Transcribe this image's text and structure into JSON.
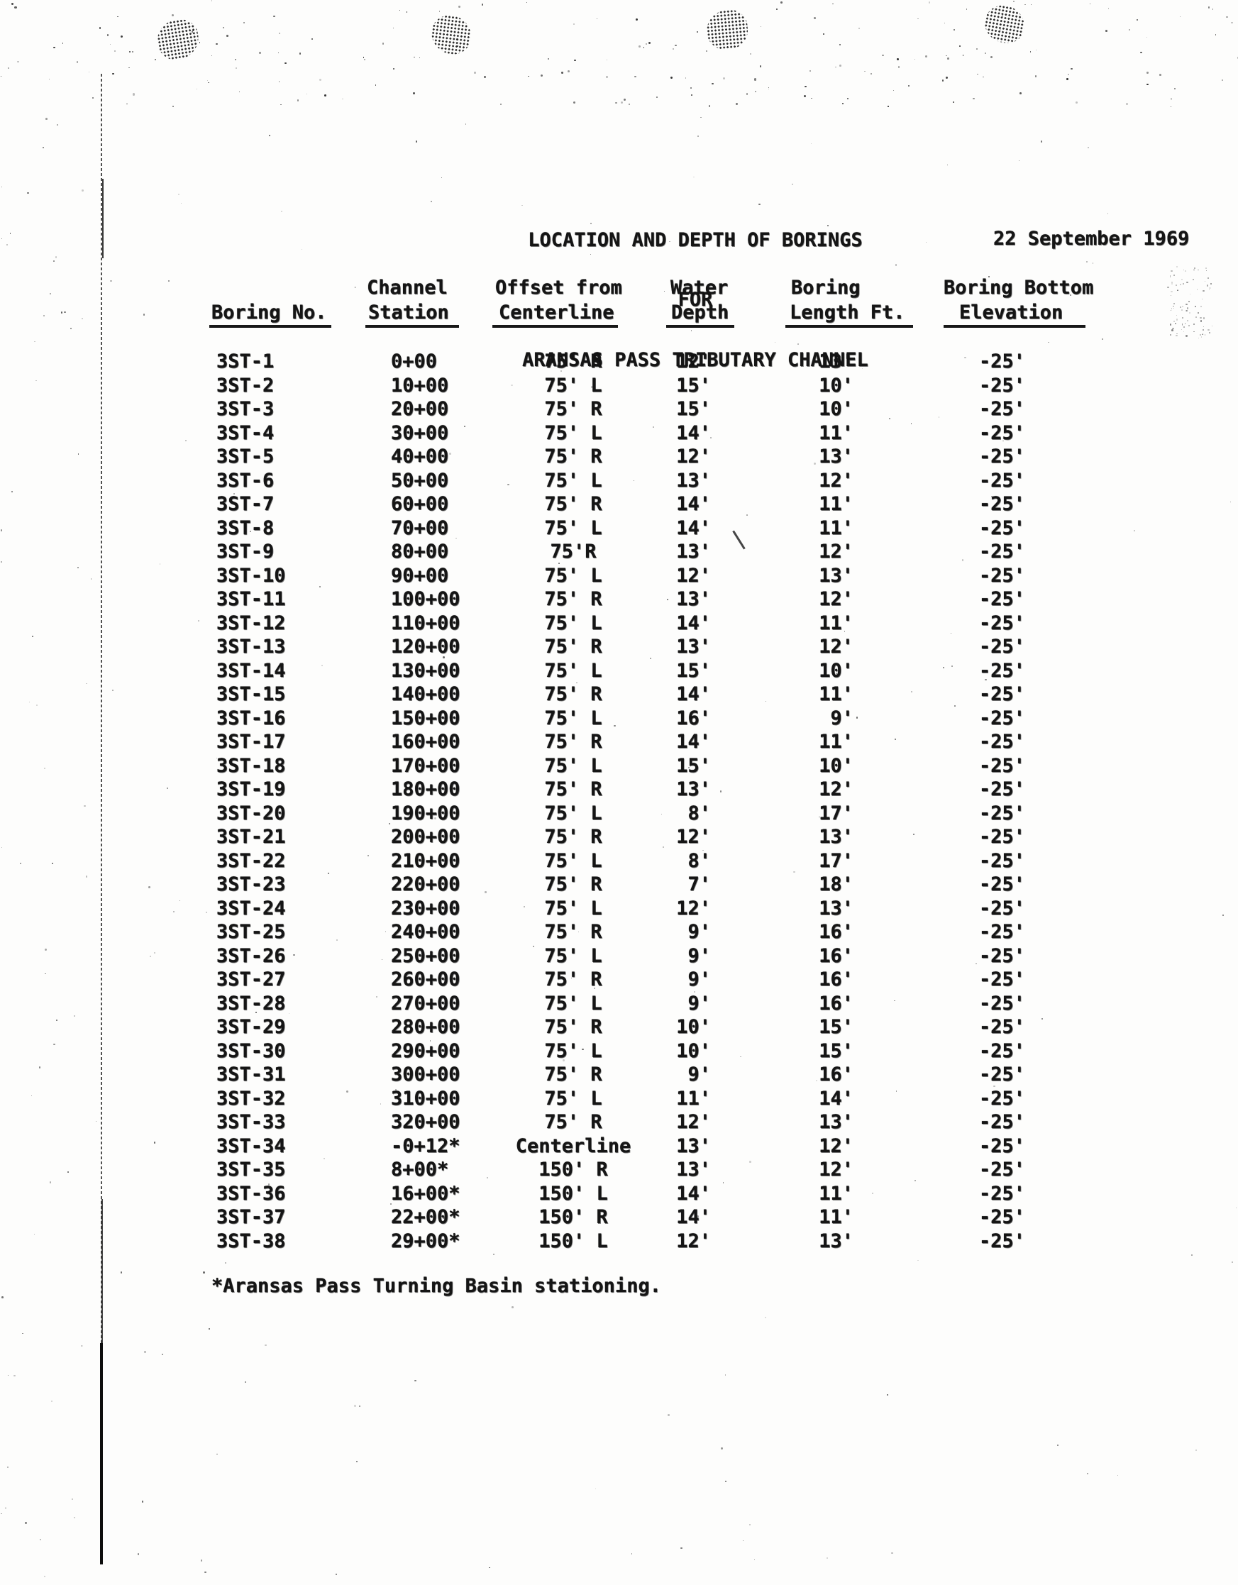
{
  "document": {
    "title_line1": "LOCATION AND DEPTH OF BORINGS",
    "title_line2": "FOR",
    "title_line3": "ARANSAS PASS TRIBUTARY CHANNEL",
    "date": "22 September 1969",
    "footnote": "*Aransas Pass Turning Basin stationing."
  },
  "table": {
    "column_headers": {
      "boring_no": {
        "line1": "",
        "line2": "Boring No."
      },
      "channel_station": {
        "line1": "Channel",
        "line2": "Station"
      },
      "offset_from_centerline": {
        "line1": "Offset from",
        "line2": "Centerline"
      },
      "water_depth": {
        "line1": "Water",
        "line2": "Depth"
      },
      "boring_length": {
        "line1": "Boring",
        "line2": "Length Ft."
      },
      "boring_bottom_elevation": {
        "line1": "Boring Bottom",
        "line2": "Elevation"
      }
    },
    "rows": [
      {
        "boring_no": "3ST-1",
        "station": "0+00",
        "offset": "75' R",
        "water_depth": "12'",
        "boring_length": "13'",
        "bottom_elevation": "-25'"
      },
      {
        "boring_no": "3ST-2",
        "station": "10+00",
        "offset": "75' L",
        "water_depth": "15'",
        "boring_length": "10'",
        "bottom_elevation": "-25'"
      },
      {
        "boring_no": "3ST-3",
        "station": "20+00",
        "offset": "75' R",
        "water_depth": "15'",
        "boring_length": "10'",
        "bottom_elevation": "-25'"
      },
      {
        "boring_no": "3ST-4",
        "station": "30+00",
        "offset": "75' L",
        "water_depth": "14'",
        "boring_length": "11'",
        "bottom_elevation": "-25'"
      },
      {
        "boring_no": "3ST-5",
        "station": "40+00",
        "offset": "75' R",
        "water_depth": "12'",
        "boring_length": "13'",
        "bottom_elevation": "-25'"
      },
      {
        "boring_no": "3ST-6",
        "station": "50+00",
        "offset": "75' L",
        "water_depth": "13'",
        "boring_length": "12'",
        "bottom_elevation": "-25'"
      },
      {
        "boring_no": "3ST-7",
        "station": "60+00",
        "offset": "75' R",
        "water_depth": "14'",
        "boring_length": "11'",
        "bottom_elevation": "-25'"
      },
      {
        "boring_no": "3ST-8",
        "station": "70+00",
        "offset": "75' L",
        "water_depth": "14'",
        "boring_length": "11'",
        "bottom_elevation": "-25'"
      },
      {
        "boring_no": "3ST-9",
        "station": "80+00",
        "offset": "75'R",
        "water_depth": "13'",
        "boring_length": "12'",
        "bottom_elevation": "-25'"
      },
      {
        "boring_no": "3ST-10",
        "station": "90+00",
        "offset": "75' L",
        "water_depth": "12'",
        "boring_length": "13'",
        "bottom_elevation": "-25'"
      },
      {
        "boring_no": "3ST-11",
        "station": "100+00",
        "offset": "75' R",
        "water_depth": "13'",
        "boring_length": "12'",
        "bottom_elevation": "-25'"
      },
      {
        "boring_no": "3ST-12",
        "station": "110+00",
        "offset": "75' L",
        "water_depth": "14'",
        "boring_length": "11'",
        "bottom_elevation": "-25'"
      },
      {
        "boring_no": "3ST-13",
        "station": "120+00",
        "offset": "75' R",
        "water_depth": "13'",
        "boring_length": "12'",
        "bottom_elevation": "-25'"
      },
      {
        "boring_no": "3ST-14",
        "station": "130+00",
        "offset": "75' L",
        "water_depth": "15'",
        "boring_length": "10'",
        "bottom_elevation": "-25'"
      },
      {
        "boring_no": "3ST-15",
        "station": "140+00",
        "offset": "75' R",
        "water_depth": "14'",
        "boring_length": "11'",
        "bottom_elevation": "-25'"
      },
      {
        "boring_no": "3ST-16",
        "station": "150+00",
        "offset": "75' L",
        "water_depth": "16'",
        "boring_length": "9'",
        "bottom_elevation": "-25'"
      },
      {
        "boring_no": "3ST-17",
        "station": "160+00",
        "offset": "75' R",
        "water_depth": "14'",
        "boring_length": "11'",
        "bottom_elevation": "-25'"
      },
      {
        "boring_no": "3ST-18",
        "station": "170+00",
        "offset": "75' L",
        "water_depth": "15'",
        "boring_length": "10'",
        "bottom_elevation": "-25'"
      },
      {
        "boring_no": "3ST-19",
        "station": "180+00",
        "offset": "75' R",
        "water_depth": "13'",
        "boring_length": "12'",
        "bottom_elevation": "-25'"
      },
      {
        "boring_no": "3ST-20",
        "station": "190+00",
        "offset": "75' L",
        "water_depth": "8'",
        "boring_length": "17'",
        "bottom_elevation": "-25'"
      },
      {
        "boring_no": "3ST-21",
        "station": "200+00",
        "offset": "75' R",
        "water_depth": "12'",
        "boring_length": "13'",
        "bottom_elevation": "-25'"
      },
      {
        "boring_no": "3ST-22",
        "station": "210+00",
        "offset": "75' L",
        "water_depth": "8'",
        "boring_length": "17'",
        "bottom_elevation": "-25'"
      },
      {
        "boring_no": "3ST-23",
        "station": "220+00",
        "offset": "75' R",
        "water_depth": "7'",
        "boring_length": "18'",
        "bottom_elevation": "-25'"
      },
      {
        "boring_no": "3ST-24",
        "station": "230+00",
        "offset": "75' L",
        "water_depth": "12'",
        "boring_length": "13'",
        "bottom_elevation": "-25'"
      },
      {
        "boring_no": "3ST-25",
        "station": "240+00",
        "offset": "75' R",
        "water_depth": "9'",
        "boring_length": "16'",
        "bottom_elevation": "-25'"
      },
      {
        "boring_no": "3ST-26",
        "station": "250+00",
        "offset": "75' L",
        "water_depth": "9'",
        "boring_length": "16'",
        "bottom_elevation": "-25'"
      },
      {
        "boring_no": "3ST-27",
        "station": "260+00",
        "offset": "75' R",
        "water_depth": "9'",
        "boring_length": "16'",
        "bottom_elevation": "-25'"
      },
      {
        "boring_no": "3ST-28",
        "station": "270+00",
        "offset": "75' L",
        "water_depth": "9'",
        "boring_length": "16'",
        "bottom_elevation": "-25'"
      },
      {
        "boring_no": "3ST-29",
        "station": "280+00",
        "offset": "75' R",
        "water_depth": "10'",
        "boring_length": "15'",
        "bottom_elevation": "-25'"
      },
      {
        "boring_no": "3ST-30",
        "station": "290+00",
        "offset": "75' L",
        "water_depth": "10'",
        "boring_length": "15'",
        "bottom_elevation": "-25'"
      },
      {
        "boring_no": "3ST-31",
        "station": "300+00",
        "offset": "75' R",
        "water_depth": "9'",
        "boring_length": "16'",
        "bottom_elevation": "-25'"
      },
      {
        "boring_no": "3ST-32",
        "station": "310+00",
        "offset": "75' L",
        "water_depth": "11'",
        "boring_length": "14'",
        "bottom_elevation": "-25'"
      },
      {
        "boring_no": "3ST-33",
        "station": "320+00",
        "offset": "75' R",
        "water_depth": "12'",
        "boring_length": "13'",
        "bottom_elevation": "-25'"
      },
      {
        "boring_no": "3ST-34",
        "station": "-0+12*",
        "offset": "Centerline",
        "water_depth": "13'",
        "boring_length": "12'",
        "bottom_elevation": "-25'"
      },
      {
        "boring_no": "3ST-35",
        "station": "8+00*",
        "offset": "150' R",
        "water_depth": "13'",
        "boring_length": "12'",
        "bottom_elevation": "-25'"
      },
      {
        "boring_no": "3ST-36",
        "station": "16+00*",
        "offset": "150' L",
        "water_depth": "14'",
        "boring_length": "11'",
        "bottom_elevation": "-25'"
      },
      {
        "boring_no": "3ST-37",
        "station": "22+00*",
        "offset": "150' R",
        "water_depth": "14'",
        "boring_length": "11'",
        "bottom_elevation": "-25'"
      },
      {
        "boring_no": "3ST-38",
        "station": "29+00*",
        "offset": "150' L",
        "water_depth": "12'",
        "boring_length": "13'",
        "bottom_elevation": "-25'"
      }
    ]
  }
}
